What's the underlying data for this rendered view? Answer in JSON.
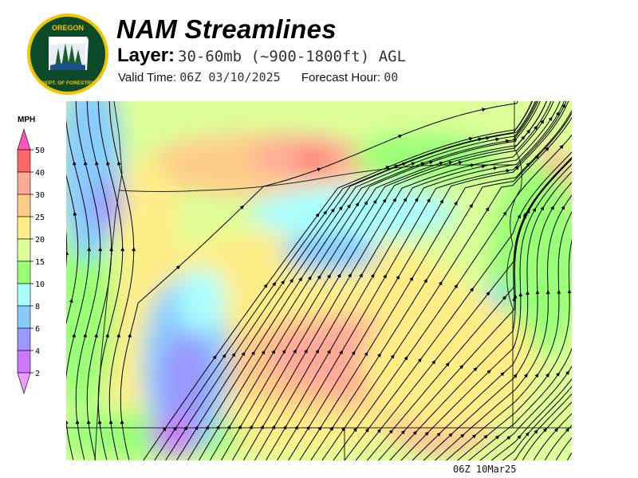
{
  "logo": {
    "text_top": "OREGON",
    "text_bottom": "DEPARTMENT OF FORESTRY"
  },
  "header": {
    "title": "NAM Streamlines",
    "layer_label": "Layer:",
    "layer_value": "30-60mb (~900-1800ft) AGL",
    "valid_label": "Valid Time:",
    "valid_value": "06Z 03/10/2025",
    "forecast_label": "Forecast Hour:",
    "forecast_value": "00"
  },
  "legend": {
    "unit": "MPH",
    "labels": [
      "50",
      "40",
      "30",
      "25",
      "20",
      "15",
      "10",
      "8",
      "6",
      "4",
      "2"
    ],
    "bins": [
      {
        "range": "40-50",
        "color": "#ff6666"
      },
      {
        "range": "30-40",
        "color": "#ffaa99"
      },
      {
        "range": "25-30",
        "color": "#ffcc88"
      },
      {
        "range": "20-25",
        "color": "#ffee88"
      },
      {
        "range": "15-20",
        "color": "#ddff99"
      },
      {
        "range": "10-15",
        "color": "#99ff77"
      },
      {
        "range": "8-10",
        "color": "#aaffff"
      },
      {
        "range": "6-8",
        "color": "#88ccff"
      },
      {
        "range": "4-6",
        "color": "#9999ff"
      },
      {
        "range": "2-4",
        "color": "#cc77ff"
      }
    ],
    "over_color": "#ff55bb",
    "under_color": "#ee99ff"
  },
  "footer": {
    "timestamp": "06Z 10Mar25"
  }
}
